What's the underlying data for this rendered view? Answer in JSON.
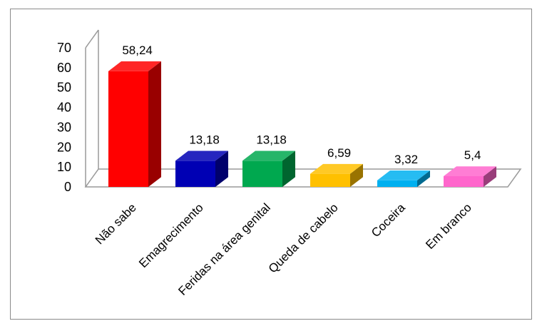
{
  "chart_data": {
    "type": "bar",
    "categories": [
      "Não sabe",
      "Emagrecimento",
      "Feridas na área genital",
      "Queda de cabelo",
      "Coceira",
      "Em branco"
    ],
    "values": [
      58.24,
      13.18,
      13.18,
      6.59,
      3.32,
      5.4
    ],
    "value_labels": [
      "58,24",
      "13,18",
      "13,18",
      "6,59",
      "3,32",
      "5,4"
    ],
    "ylim": [
      0,
      70
    ],
    "yticks": [
      "0",
      "10",
      "20",
      "30",
      "40",
      "50",
      "60",
      "70"
    ],
    "grid": false,
    "legend": "none",
    "bar_colors": [
      "#ff0000",
      "#0000b4",
      "#00a84f",
      "#ffc000",
      "#00b0f0",
      "#ff66cc"
    ],
    "title": "",
    "xlabel": "",
    "ylabel": ""
  }
}
